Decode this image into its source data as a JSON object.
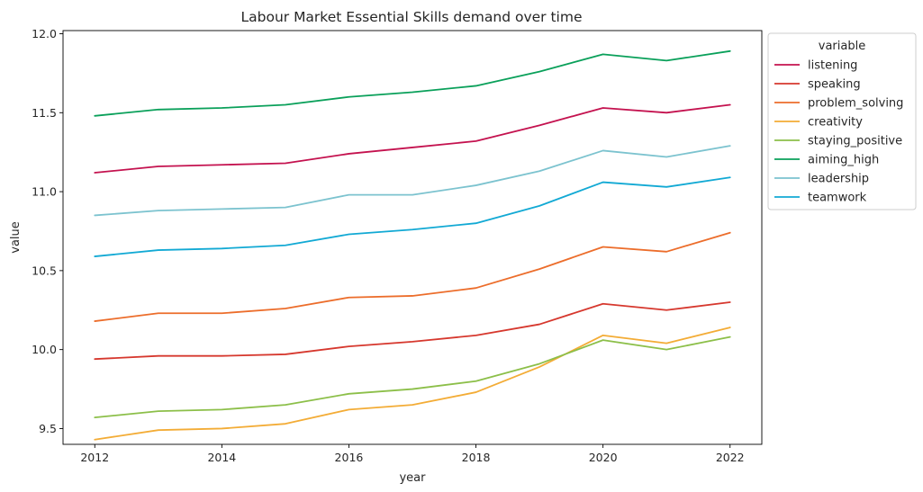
{
  "chart_data": {
    "type": "line",
    "title": "Labour Market Essential Skills demand over time",
    "xlabel": "year",
    "ylabel": "value",
    "xlim": [
      2011.5,
      2022.5
    ],
    "ylim": [
      9.4,
      12.02
    ],
    "xticks": [
      2012,
      2014,
      2016,
      2018,
      2020,
      2022
    ],
    "yticks": [
      9.5,
      10.0,
      10.5,
      11.0,
      11.5,
      12.0
    ],
    "ytick_labels": [
      "9.5",
      "10.0",
      "10.5",
      "11.0",
      "11.5",
      "12.0"
    ],
    "grid": false,
    "legend_title": "variable",
    "legend_position": "outside-top-right",
    "x": [
      2012,
      2013,
      2014,
      2015,
      2016,
      2017,
      2018,
      2019,
      2020,
      2021,
      2022
    ],
    "series": [
      {
        "name": "listening",
        "color": "#c4124f",
        "values": [
          11.12,
          11.16,
          11.17,
          11.18,
          11.24,
          11.28,
          11.32,
          11.42,
          11.53,
          11.5,
          11.55
        ]
      },
      {
        "name": "speaking",
        "color": "#d6382e",
        "values": [
          9.94,
          9.96,
          9.96,
          9.97,
          10.02,
          10.05,
          10.09,
          10.16,
          10.29,
          10.25,
          10.3
        ]
      },
      {
        "name": "problem_solving",
        "color": "#ec6d2b",
        "values": [
          10.18,
          10.23,
          10.23,
          10.26,
          10.33,
          10.34,
          10.39,
          10.51,
          10.65,
          10.62,
          10.74
        ]
      },
      {
        "name": "creativity",
        "color": "#f3ac36",
        "values": [
          9.43,
          9.49,
          9.5,
          9.53,
          9.62,
          9.65,
          9.73,
          9.89,
          10.09,
          10.04,
          10.14
        ]
      },
      {
        "name": "staying_positive",
        "color": "#8cbf49",
        "values": [
          9.57,
          9.61,
          9.62,
          9.65,
          9.72,
          9.75,
          9.8,
          9.91,
          10.06,
          10.0,
          10.08
        ]
      },
      {
        "name": "aiming_high",
        "color": "#0aa05a",
        "values": [
          11.48,
          11.52,
          11.53,
          11.55,
          11.6,
          11.63,
          11.67,
          11.76,
          11.87,
          11.83,
          11.89
        ]
      },
      {
        "name": "leadership",
        "color": "#7cc3cf",
        "values": [
          10.85,
          10.88,
          10.89,
          10.9,
          10.98,
          10.98,
          11.04,
          11.13,
          11.26,
          11.22,
          11.29
        ]
      },
      {
        "name": "teamwork",
        "color": "#12a9d4",
        "values": [
          10.59,
          10.63,
          10.64,
          10.66,
          10.73,
          10.76,
          10.8,
          10.91,
          11.06,
          11.03,
          11.09
        ]
      }
    ]
  }
}
